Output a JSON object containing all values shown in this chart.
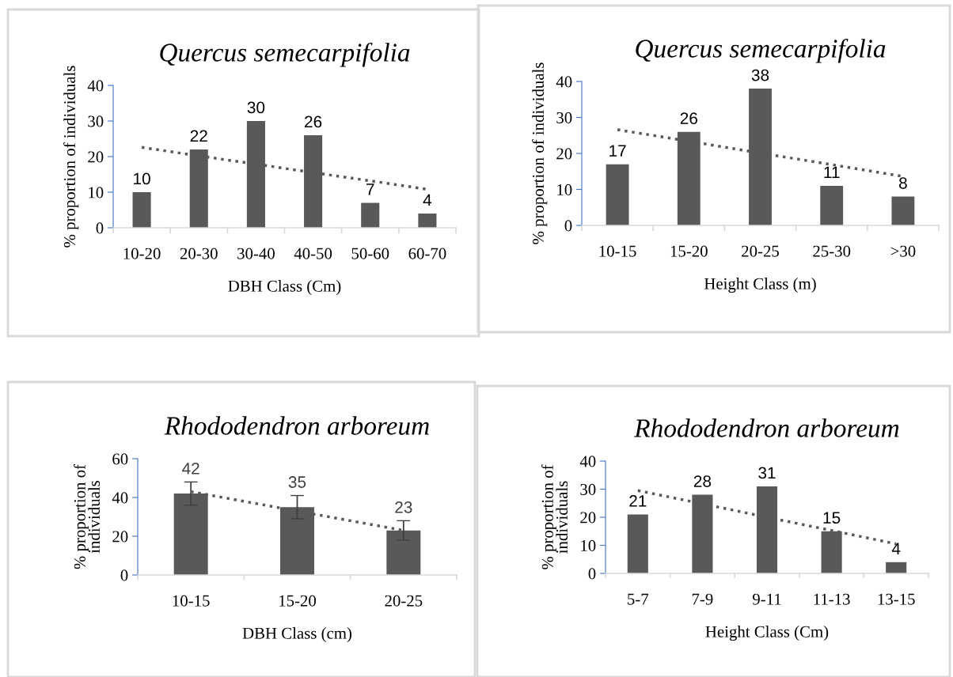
{
  "chart_data": [
    {
      "type": "bar",
      "title": "Quercus semecarpifolia",
      "xlabel": "DBH Class (Cm)",
      "ylabel": "% proportion of individuals",
      "categories": [
        "10-20",
        "20-30",
        "30-40",
        "40-50",
        "50-60",
        "60-70"
      ],
      "ylim": [
        0,
        40
      ],
      "yticks": [
        0,
        10,
        20,
        30,
        40
      ],
      "grid": false,
      "series": [
        {
          "color": "#595959",
          "values": [
            10,
            22,
            30,
            26,
            7,
            4
          ],
          "value_labels": [
            "10",
            "22",
            "30",
            "26",
            "7",
            "4"
          ]
        },
        {
          "type": "line",
          "color": "#595959",
          "line_style": "dotted",
          "values": [
            22.6,
            20.2,
            17.9,
            15.5,
            13.2,
            10.8
          ]
        }
      ]
    },
    {
      "type": "bar",
      "title": "Quercus semecarpifolia",
      "xlabel": "Height Class (m)",
      "ylabel": "% proportion of individuals",
      "categories": [
        "10-15",
        "15-20",
        "20-25",
        "25-30",
        ">30"
      ],
      "ylim": [
        0,
        40
      ],
      "yticks": [
        0,
        10,
        20,
        30,
        40
      ],
      "grid": false,
      "series": [
        {
          "color": "#595959",
          "values": [
            17,
            26,
            38,
            11,
            8
          ],
          "value_labels": [
            "17",
            "26",
            "38",
            "11",
            "8"
          ]
        },
        {
          "type": "line",
          "color": "#595959",
          "line_style": "dotted",
          "values": [
            26.6,
            23.4,
            20.1,
            16.9,
            13.6
          ]
        }
      ]
    },
    {
      "type": "bar",
      "title": "Rhododendron arboreum",
      "xlabel": "DBH Class (cm)",
      "ylabel": "% proportion of\nindividuals",
      "categories": [
        "10-15",
        "15-20",
        "20-25"
      ],
      "ylim": [
        0,
        60
      ],
      "yticks": [
        0,
        20,
        40,
        60
      ],
      "grid": false,
      "series": [
        {
          "color": "#595959",
          "values": [
            42,
            35,
            23
          ],
          "errors": [
            6,
            6,
            5
          ],
          "value_labels": [
            "42",
            "35",
            "23"
          ]
        },
        {
          "type": "line",
          "color": "#595959",
          "line_style": "dotted",
          "values": [
            43,
            33,
            23
          ]
        }
      ]
    },
    {
      "type": "bar",
      "title": "Rhododendron arboreum",
      "xlabel": "Height Class (Cm)",
      "ylabel": "% proportion of\nindividuals",
      "categories": [
        "5-7",
        "7-9",
        "9-11",
        "11-13",
        "13-15"
      ],
      "ylim": [
        0,
        40
      ],
      "yticks": [
        0,
        10,
        20,
        30,
        40
      ],
      "grid": false,
      "series": [
        {
          "color": "#595959",
          "values": [
            21,
            28,
            31,
            15,
            4
          ],
          "value_labels": [
            "21",
            "28",
            "31",
            "15",
            "4"
          ]
        },
        {
          "type": "line",
          "color": "#595959",
          "line_style": "dotted",
          "values": [
            29.5,
            24.8,
            20.0,
            15.3,
            10.5
          ]
        }
      ]
    }
  ]
}
